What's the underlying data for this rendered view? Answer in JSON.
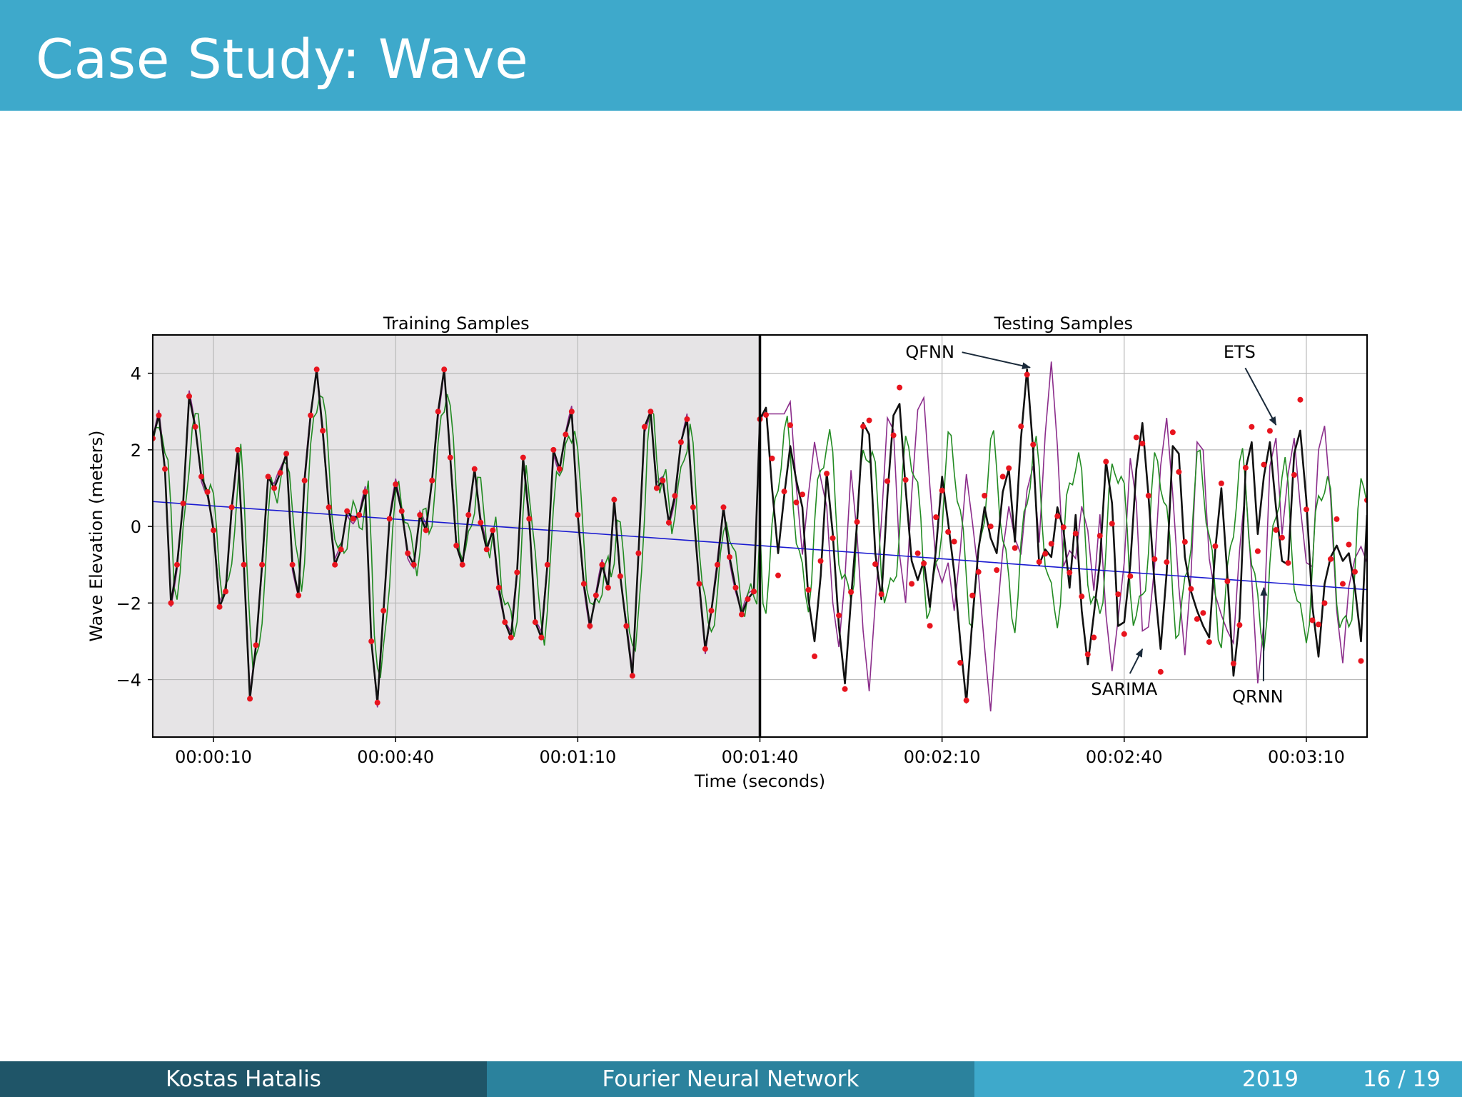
{
  "slide": {
    "title": "Case Study: Wave",
    "footer_author": "Kostas Hatalis",
    "footer_title": "Fourier Neural Network",
    "footer_year": "2019",
    "footer_page": "16 / 19"
  },
  "chart_data": {
    "type": "line",
    "ylabel": "Wave Elevation (meters)",
    "xlabel": "Time (seconds)",
    "ylim": [
      -5.5,
      5
    ],
    "xlim": [
      0,
      200
    ],
    "split_x": 100,
    "grid": true,
    "region_labels": [
      "Training Samples",
      "Testing Samples"
    ],
    "x_ticks": [
      {
        "x": 10,
        "label": "00:00:10"
      },
      {
        "x": 40,
        "label": "00:00:40"
      },
      {
        "x": 70,
        "label": "00:01:10"
      },
      {
        "x": 100,
        "label": "00:01:40"
      },
      {
        "x": 130,
        "label": "00:02:10"
      },
      {
        "x": 160,
        "label": "00:02:40"
      },
      {
        "x": 190,
        "label": "00:03:10"
      }
    ],
    "y_ticks": [
      {
        "y": 4,
        "label": "4"
      },
      {
        "y": 2,
        "label": "2"
      },
      {
        "y": 0,
        "label": "0"
      },
      {
        "y": -2,
        "label": "−2"
      },
      {
        "y": -4,
        "label": "−4"
      }
    ],
    "colors": {
      "observed": "#111111",
      "points": "#e8141e",
      "sarima": "#228b22",
      "ets": "#8b2d8b",
      "trend": "#1a1ad0",
      "training_bg": "#e6e4e6"
    },
    "annotations": [
      {
        "text": "QFNN",
        "x": 128,
        "y": 4.4,
        "arrow_to": [
          144.5,
          4.15
        ]
      },
      {
        "text": "ETS",
        "x": 179,
        "y": 4.4,
        "arrow_to": [
          185,
          2.65
        ]
      },
      {
        "text": "SARIMA",
        "x": 160,
        "y": -4.4,
        "arrow_to": [
          163,
          -3.2
        ]
      },
      {
        "text": "QRNN",
        "x": 182,
        "y": -4.6,
        "arrow_to": [
          183,
          -1.6
        ]
      }
    ],
    "trend_line": {
      "x": [
        0,
        200
      ],
      "y": [
        0.65,
        -1.65
      ]
    },
    "observed_training": [
      [
        0,
        2.3
      ],
      [
        1,
        2.9
      ],
      [
        2,
        1.5
      ],
      [
        3,
        -2.0
      ],
      [
        4,
        -1.0
      ],
      [
        5,
        0.6
      ],
      [
        6,
        3.4
      ],
      [
        7,
        2.6
      ],
      [
        8,
        1.3
      ],
      [
        9,
        0.9
      ],
      [
        10,
        -0.1
      ],
      [
        11,
        -2.1
      ],
      [
        12,
        -1.7
      ],
      [
        13,
        0.5
      ],
      [
        14,
        2.0
      ],
      [
        15,
        -1.0
      ],
      [
        16,
        -4.5
      ],
      [
        17,
        -3.1
      ],
      [
        18,
        -1.0
      ],
      [
        19,
        1.3
      ],
      [
        20,
        1.0
      ],
      [
        21,
        1.4
      ],
      [
        22,
        1.9
      ],
      [
        23,
        -1.0
      ],
      [
        24,
        -1.8
      ],
      [
        25,
        1.2
      ],
      [
        26,
        2.9
      ],
      [
        27,
        4.1
      ],
      [
        28,
        2.5
      ],
      [
        29,
        0.5
      ],
      [
        30,
        -1.0
      ],
      [
        31,
        -0.6
      ],
      [
        32,
        0.4
      ],
      [
        33,
        0.2
      ],
      [
        34,
        0.3
      ],
      [
        35,
        0.9
      ],
      [
        36,
        -3.0
      ],
      [
        37,
        -4.6
      ],
      [
        38,
        -2.2
      ],
      [
        39,
        0.2
      ],
      [
        40,
        1.1
      ],
      [
        41,
        0.4
      ],
      [
        42,
        -0.7
      ],
      [
        43,
        -1.0
      ],
      [
        44,
        0.3
      ],
      [
        45,
        -0.1
      ],
      [
        46,
        1.2
      ],
      [
        47,
        3.0
      ],
      [
        48,
        4.1
      ],
      [
        49,
        1.8
      ],
      [
        50,
        -0.5
      ],
      [
        51,
        -1.0
      ],
      [
        52,
        0.3
      ],
      [
        53,
        1.5
      ],
      [
        54,
        0.1
      ],
      [
        55,
        -0.6
      ],
      [
        56,
        -0.1
      ],
      [
        57,
        -1.6
      ],
      [
        58,
        -2.5
      ],
      [
        59,
        -2.9
      ],
      [
        60,
        -1.2
      ],
      [
        61,
        1.8
      ],
      [
        62,
        0.2
      ],
      [
        63,
        -2.5
      ],
      [
        64,
        -2.9
      ],
      [
        65,
        -1.0
      ],
      [
        66,
        2.0
      ],
      [
        67,
        1.5
      ],
      [
        68,
        2.4
      ],
      [
        69,
        3.0
      ],
      [
        70,
        0.3
      ],
      [
        71,
        -1.5
      ],
      [
        72,
        -2.6
      ],
      [
        73,
        -1.8
      ],
      [
        74,
        -1.0
      ],
      [
        75,
        -1.6
      ],
      [
        76,
        0.7
      ],
      [
        77,
        -1.3
      ],
      [
        78,
        -2.6
      ],
      [
        79,
        -3.9
      ],
      [
        80,
        -0.7
      ],
      [
        81,
        2.6
      ],
      [
        82,
        3.0
      ],
      [
        83,
        1.0
      ],
      [
        84,
        1.2
      ],
      [
        85,
        0.1
      ],
      [
        86,
        0.8
      ],
      [
        87,
        2.2
      ],
      [
        88,
        2.8
      ],
      [
        89,
        0.5
      ],
      [
        90,
        -1.5
      ],
      [
        91,
        -3.2
      ],
      [
        92,
        -2.2
      ],
      [
        93,
        -1.0
      ],
      [
        94,
        0.5
      ],
      [
        95,
        -0.8
      ],
      [
        96,
        -1.6
      ],
      [
        97,
        -2.3
      ],
      [
        98,
        -1.9
      ],
      [
        99,
        -1.7
      ],
      [
        100,
        2.8
      ]
    ],
    "observed_testing": [
      [
        100,
        2.8
      ],
      [
        101,
        3.1
      ],
      [
        102,
        1.0
      ],
      [
        103,
        -0.7
      ],
      [
        104,
        0.8
      ],
      [
        105,
        2.1
      ],
      [
        106,
        1.2
      ],
      [
        107,
        0.5
      ],
      [
        108,
        -1.9
      ],
      [
        109,
        -3.0
      ],
      [
        110,
        -1.3
      ],
      [
        111,
        1.4
      ],
      [
        112,
        -0.2
      ],
      [
        113,
        -2.6
      ],
      [
        114,
        -4.1
      ],
      [
        115,
        -1.9
      ],
      [
        116,
        0.1
      ],
      [
        117,
        2.7
      ],
      [
        118,
        2.4
      ],
      [
        119,
        -0.7
      ],
      [
        120,
        -1.9
      ],
      [
        121,
        0.8
      ],
      [
        122,
        2.9
      ],
      [
        123,
        3.2
      ],
      [
        124,
        1.0
      ],
      [
        125,
        -0.9
      ],
      [
        126,
        -1.4
      ],
      [
        127,
        -0.9
      ],
      [
        128,
        -2.1
      ],
      [
        129,
        -0.6
      ],
      [
        130,
        1.3
      ],
      [
        131,
        0.1
      ],
      [
        132,
        -1.2
      ],
      [
        133,
        -3.0
      ],
      [
        134,
        -4.6
      ],
      [
        135,
        -2.4
      ],
      [
        136,
        -0.6
      ],
      [
        137,
        0.5
      ],
      [
        138,
        -0.3
      ],
      [
        139,
        -0.7
      ],
      [
        140,
        0.9
      ],
      [
        141,
        1.5
      ],
      [
        142,
        -0.4
      ],
      [
        143,
        2.3
      ],
      [
        144,
        4.1
      ],
      [
        145,
        2.0
      ],
      [
        146,
        -1.0
      ],
      [
        147,
        -0.6
      ],
      [
        148,
        -0.8
      ],
      [
        149,
        0.5
      ],
      [
        150,
        -0.1
      ],
      [
        151,
        -1.6
      ],
      [
        152,
        0.3
      ],
      [
        153,
        -2.2
      ],
      [
        154,
        -3.6
      ],
      [
        155,
        -2.3
      ],
      [
        156,
        -0.9
      ],
      [
        157,
        1.7
      ],
      [
        158,
        0.6
      ],
      [
        159,
        -2.6
      ],
      [
        160,
        -2.5
      ],
      [
        161,
        -1.0
      ],
      [
        162,
        1.5
      ],
      [
        163,
        2.7
      ],
      [
        164,
        0.8
      ],
      [
        165,
        -1.5
      ],
      [
        166,
        -3.2
      ],
      [
        167,
        -1.2
      ],
      [
        168,
        2.1
      ],
      [
        169,
        1.9
      ],
      [
        170,
        -0.8
      ],
      [
        171,
        -1.7
      ],
      [
        172,
        -2.2
      ],
      [
        173,
        -2.6
      ],
      [
        174,
        -2.9
      ],
      [
        175,
        -0.6
      ],
      [
        176,
        1.0
      ],
      [
        177,
        -1.3
      ],
      [
        178,
        -3.9
      ],
      [
        179,
        -2.4
      ],
      [
        180,
        1.5
      ],
      [
        181,
        2.2
      ],
      [
        182,
        -0.2
      ],
      [
        183,
        1.3
      ],
      [
        184,
        2.2
      ],
      [
        185,
        0.5
      ],
      [
        186,
        -0.9
      ],
      [
        187,
        -1.0
      ],
      [
        188,
        1.9
      ],
      [
        189,
        2.5
      ],
      [
        190,
        0.7
      ],
      [
        191,
        -2.1
      ],
      [
        192,
        -3.4
      ],
      [
        193,
        -1.5
      ],
      [
        194,
        -0.8
      ],
      [
        195,
        -0.5
      ],
      [
        196,
        -0.9
      ],
      [
        197,
        -0.7
      ],
      [
        198,
        -1.6
      ],
      [
        199,
        -3.0
      ],
      [
        200,
        0.3
      ]
    ]
  }
}
